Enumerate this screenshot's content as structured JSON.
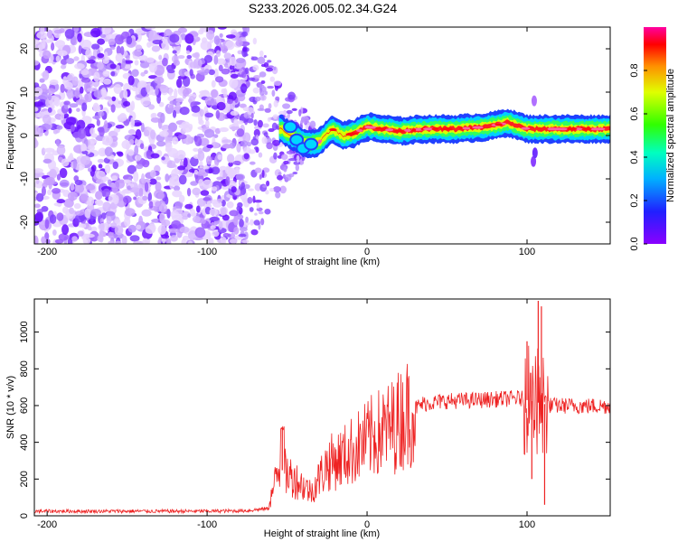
{
  "title": "S233.2026.005.02.34.G24",
  "chart_data": [
    {
      "type": "heatmap",
      "xlabel": "Height of straight line (km)",
      "ylabel": "Frequency (Hz)",
      "xlim": [
        -208,
        152
      ],
      "ylim": [
        -25,
        25
      ],
      "xticks": [
        -200,
        -100,
        0,
        100
      ],
      "yticks": [
        -20,
        -10,
        0,
        10,
        20
      ],
      "colorbar": {
        "label": "Normalized spectral amplitude",
        "range": [
          0,
          1
        ],
        "ticks": [
          0.0,
          0.2,
          0.4,
          0.6,
          0.8
        ]
      },
      "signal_ridge": [
        {
          "x": -52,
          "y": 1
        },
        {
          "x": -45,
          "y": -0.5
        },
        {
          "x": -38,
          "y": -2
        },
        {
          "x": -30,
          "y": -1.5
        },
        {
          "x": -22,
          "y": 1.5
        },
        {
          "x": -15,
          "y": 0
        },
        {
          "x": -8,
          "y": 0.5
        },
        {
          "x": 0,
          "y": 2
        },
        {
          "x": 10,
          "y": 1.5
        },
        {
          "x": 20,
          "y": 1
        },
        {
          "x": 35,
          "y": 1.5
        },
        {
          "x": 55,
          "y": 1.5
        },
        {
          "x": 75,
          "y": 2
        },
        {
          "x": 88,
          "y": 3
        },
        {
          "x": 100,
          "y": 1.5
        },
        {
          "x": 115,
          "y": 1.5
        },
        {
          "x": 152,
          "y": 1.5
        }
      ]
    },
    {
      "type": "line",
      "xlabel": "Height of straight line (km)",
      "ylabel": "SNR (10 * v/v)",
      "xlim": [
        -208,
        152
      ],
      "ylim": [
        0,
        1180
      ],
      "xticks": [
        -200,
        -100,
        0,
        100
      ],
      "yticks": [
        0,
        200,
        400,
        600,
        800,
        1000
      ],
      "series": [
        {
          "name": "SNR",
          "color": "#ee2222",
          "envelope": [
            {
              "x": -208,
              "y": 25
            },
            {
              "x": -100,
              "y": 25
            },
            {
              "x": -75,
              "y": 28
            },
            {
              "x": -62,
              "y": 40
            },
            {
              "x": -55,
              "y": 260
            },
            {
              "x": -45,
              "y": 200
            },
            {
              "x": -35,
              "y": 130
            },
            {
              "x": -25,
              "y": 280
            },
            {
              "x": -15,
              "y": 320
            },
            {
              "x": -5,
              "y": 380
            },
            {
              "x": 5,
              "y": 440
            },
            {
              "x": 15,
              "y": 480
            },
            {
              "x": 25,
              "y": 560
            },
            {
              "x": 35,
              "y": 610
            },
            {
              "x": 50,
              "y": 625
            },
            {
              "x": 70,
              "y": 630
            },
            {
              "x": 95,
              "y": 640
            },
            {
              "x": 115,
              "y": 600
            },
            {
              "x": 135,
              "y": 598
            },
            {
              "x": 152,
              "y": 598
            }
          ],
          "spikes": [
            {
              "x": -53,
              "y": 480
            },
            {
              "x": 100,
              "y": 950
            },
            {
              "x": 107,
              "y": 1170
            },
            {
              "x": 109,
              "y": 1140
            },
            {
              "x": 111,
              "y": 60
            },
            {
              "x": 103,
              "y": 200
            }
          ]
        }
      ]
    }
  ]
}
